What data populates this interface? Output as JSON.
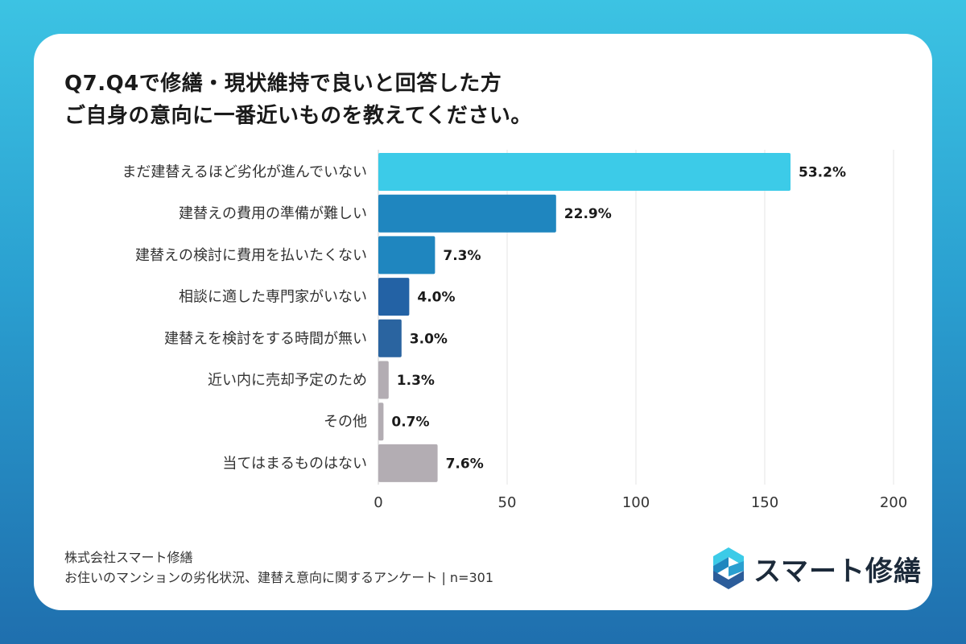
{
  "title": {
    "line1": "Q7.Q4で修繕・現状維持で良いと回答した方",
    "line2": "ご自身の意向に一番近いものを教えてください。"
  },
  "chart_data": {
    "type": "bar",
    "orientation": "horizontal",
    "categories": [
      "まだ建替えるほど劣化が進んでいない",
      "建替えの費用の準備が難しい",
      "建替えの検討に費用を払いたくない",
      "相談に適した専門家がいない",
      "建替えを検討をする時間が無い",
      "近い内に売却予定のため",
      "その他",
      "当てはまるものはない"
    ],
    "values": [
      160,
      69,
      22,
      12,
      9,
      4,
      2,
      23
    ],
    "labels": [
      "53.2%",
      "22.9%",
      "7.3%",
      "4.0%",
      "3.0%",
      "1.3%",
      "0.7%",
      "7.6%"
    ],
    "colors": [
      "#3ccbe8",
      "#1f86bf",
      "#1f86bf",
      "#2362a5",
      "#2a64a0",
      "#b3adb3",
      "#b3adb3",
      "#b3adb3"
    ],
    "xlim": [
      0,
      200
    ],
    "xticks": [
      0,
      50,
      100,
      150,
      200
    ],
    "grid": true
  },
  "footer": {
    "company": "株式会社スマート修繕",
    "survey": "お住いのマンションの劣化状況、建替え意向に関するアンケート | n=301"
  },
  "logo": {
    "text": "スマート修繕"
  }
}
